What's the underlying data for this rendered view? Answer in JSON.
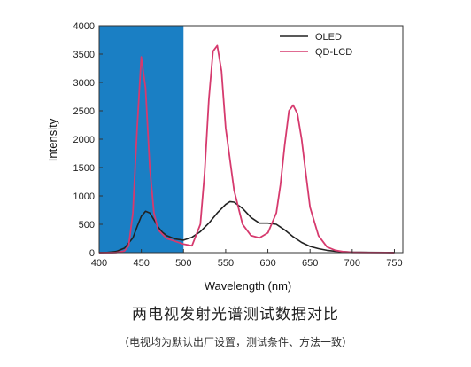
{
  "chart_data": {
    "type": "line",
    "xlabel": "Wavelength (nm)",
    "ylabel": "Intensity",
    "xlim": [
      400,
      760
    ],
    "ylim": [
      0,
      4000
    ],
    "xticks": [
      400,
      450,
      500,
      550,
      600,
      650,
      700,
      750
    ],
    "yticks": [
      0,
      500,
      1000,
      1500,
      2000,
      2500,
      3000,
      3500,
      4000
    ],
    "highlight_band": {
      "x0": 400,
      "x1": 500,
      "color": "#1a7fc4"
    },
    "legend_position": "top-right",
    "series": [
      {
        "name": "OLED",
        "color": "#222222",
        "x": [
          400,
          410,
          420,
          430,
          440,
          445,
          450,
          455,
          460,
          465,
          470,
          475,
          480,
          490,
          500,
          510,
          520,
          530,
          540,
          550,
          555,
          560,
          570,
          580,
          590,
          600,
          610,
          620,
          630,
          640,
          650,
          660,
          670,
          680,
          700,
          720,
          740,
          750
        ],
        "y": [
          0,
          5,
          20,
          80,
          260,
          460,
          640,
          730,
          700,
          580,
          450,
          360,
          300,
          240,
          220,
          270,
          370,
          520,
          700,
          850,
          900,
          890,
          780,
          620,
          520,
          520,
          500,
          400,
          280,
          180,
          110,
          70,
          40,
          25,
          10,
          5,
          3,
          2
        ]
      },
      {
        "name": "QD-LCD",
        "color": "#d63a6e",
        "x": [
          400,
          420,
          430,
          435,
          440,
          445,
          450,
          455,
          460,
          465,
          470,
          480,
          490,
          500,
          510,
          520,
          525,
          530,
          535,
          540,
          545,
          550,
          560,
          570,
          580,
          590,
          600,
          610,
          615,
          620,
          625,
          630,
          635,
          640,
          645,
          650,
          660,
          670,
          680,
          690,
          700,
          720,
          740,
          750
        ],
        "y": [
          0,
          2,
          30,
          120,
          700,
          2200,
          3450,
          2900,
          1500,
          700,
          400,
          250,
          200,
          150,
          120,
          500,
          1400,
          2700,
          3550,
          3650,
          3200,
          2200,
          1100,
          500,
          300,
          260,
          350,
          700,
          1200,
          1900,
          2500,
          2600,
          2450,
          2000,
          1400,
          800,
          300,
          100,
          40,
          15,
          5,
          2,
          1,
          0
        ]
      }
    ]
  },
  "caption": {
    "title": "两电视发射光谱测试数据对比",
    "note": "（电视均为默认出厂设置，测试条件、方法一致）"
  }
}
